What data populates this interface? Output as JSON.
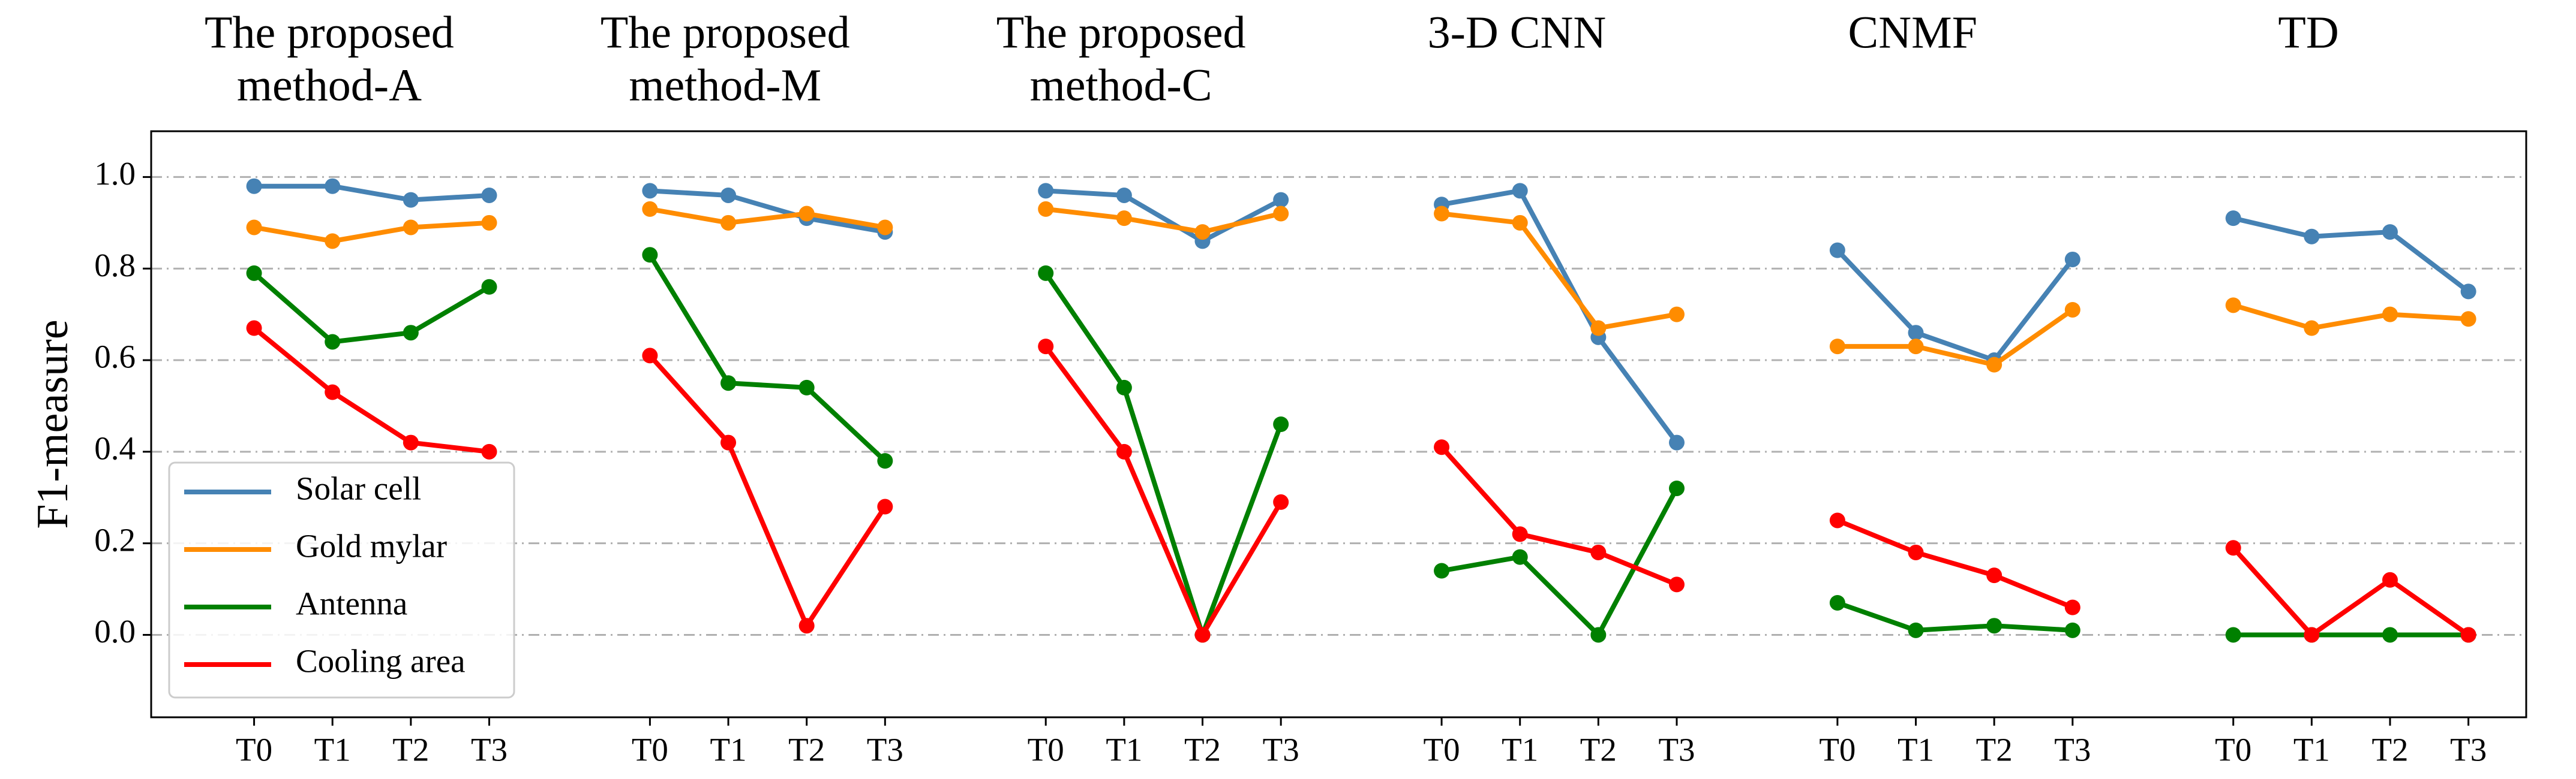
{
  "chart_data": {
    "type": "line",
    "ylabel": "F1-measure",
    "ylim": [
      -0.18,
      1.1
    ],
    "yticks": [
      {
        "value": 0,
        "label": "0.0"
      },
      0.2,
      0.4,
      0.6,
      0.8,
      {
        "value": 1,
        "label": "1.0"
      }
    ],
    "grid": true,
    "legend": "lower left",
    "legend_series": [
      {
        "name": "Solar cell",
        "color": "#4682b4"
      },
      {
        "name": "Gold mylar",
        "color": "#ff8c00"
      },
      {
        "name": "Antenna",
        "color": "#008000"
      },
      {
        "name": "Cooling area",
        "color": "#ff0000"
      }
    ],
    "panels": [
      {
        "title": [
          "The proposed",
          "method-A"
        ],
        "categories": [
          "T0",
          "T1",
          "T2",
          "T3"
        ],
        "series": [
          {
            "values": [
              0.98,
              0.98,
              0.95,
              0.96
            ]
          },
          {
            "values": [
              0.89,
              0.86,
              0.89,
              0.9
            ]
          },
          {
            "values": [
              0.79,
              0.64,
              0.66,
              0.76
            ]
          },
          {
            "values": [
              0.67,
              0.53,
              0.42,
              0.4
            ]
          }
        ]
      },
      {
        "title": [
          "The proposed",
          "method-M"
        ],
        "categories": [
          "T0",
          "T1",
          "T2",
          "T3"
        ],
        "series": [
          {
            "values": [
              0.97,
              0.96,
              0.91,
              0.88
            ]
          },
          {
            "values": [
              0.93,
              0.9,
              0.92,
              0.89
            ]
          },
          {
            "values": [
              0.83,
              0.55,
              0.54,
              0.38
            ]
          },
          {
            "values": [
              0.61,
              0.42,
              0.02,
              0.28
            ]
          }
        ]
      },
      {
        "title": [
          "The proposed",
          "method-C"
        ],
        "categories": [
          "T0",
          "T1",
          "T2",
          "T3"
        ],
        "series": [
          {
            "values": [
              0.97,
              0.96,
              0.86,
              0.95
            ]
          },
          {
            "values": [
              0.93,
              0.91,
              0.88,
              0.92
            ]
          },
          {
            "values": [
              0.79,
              0.54,
              0.0,
              0.46
            ]
          },
          {
            "values": [
              0.63,
              0.4,
              0.0,
              0.29
            ]
          }
        ]
      },
      {
        "title": [
          "3-D CNN"
        ],
        "categories": [
          "T0",
          "T1",
          "T2",
          "T3"
        ],
        "series": [
          {
            "values": [
              0.94,
              0.97,
              0.65,
              0.42
            ]
          },
          {
            "values": [
              0.92,
              0.9,
              0.67,
              0.7
            ]
          },
          {
            "values": [
              0.14,
              0.17,
              0.0,
              0.32
            ]
          },
          {
            "values": [
              0.41,
              0.22,
              0.18,
              0.11
            ]
          }
        ]
      },
      {
        "title": [
          "CNMF"
        ],
        "categories": [
          "T0",
          "T1",
          "T2",
          "T3"
        ],
        "series": [
          {
            "values": [
              0.84,
              0.66,
              0.6,
              0.82
            ]
          },
          {
            "values": [
              0.63,
              0.63,
              0.59,
              0.71
            ]
          },
          {
            "values": [
              0.07,
              0.01,
              0.02,
              0.01
            ]
          },
          {
            "values": [
              0.25,
              0.18,
              0.13,
              0.06
            ]
          }
        ]
      },
      {
        "title": [
          "TD"
        ],
        "categories": [
          "T0",
          "T1",
          "T2",
          "T3"
        ],
        "series": [
          {
            "values": [
              0.91,
              0.87,
              0.88,
              0.75
            ]
          },
          {
            "values": [
              0.72,
              0.67,
              0.7,
              0.69
            ]
          },
          {
            "values": [
              0.0,
              0.0,
              0.0,
              0.0
            ]
          },
          {
            "values": [
              0.19,
              0.0,
              0.12,
              0.0
            ]
          }
        ]
      }
    ]
  }
}
